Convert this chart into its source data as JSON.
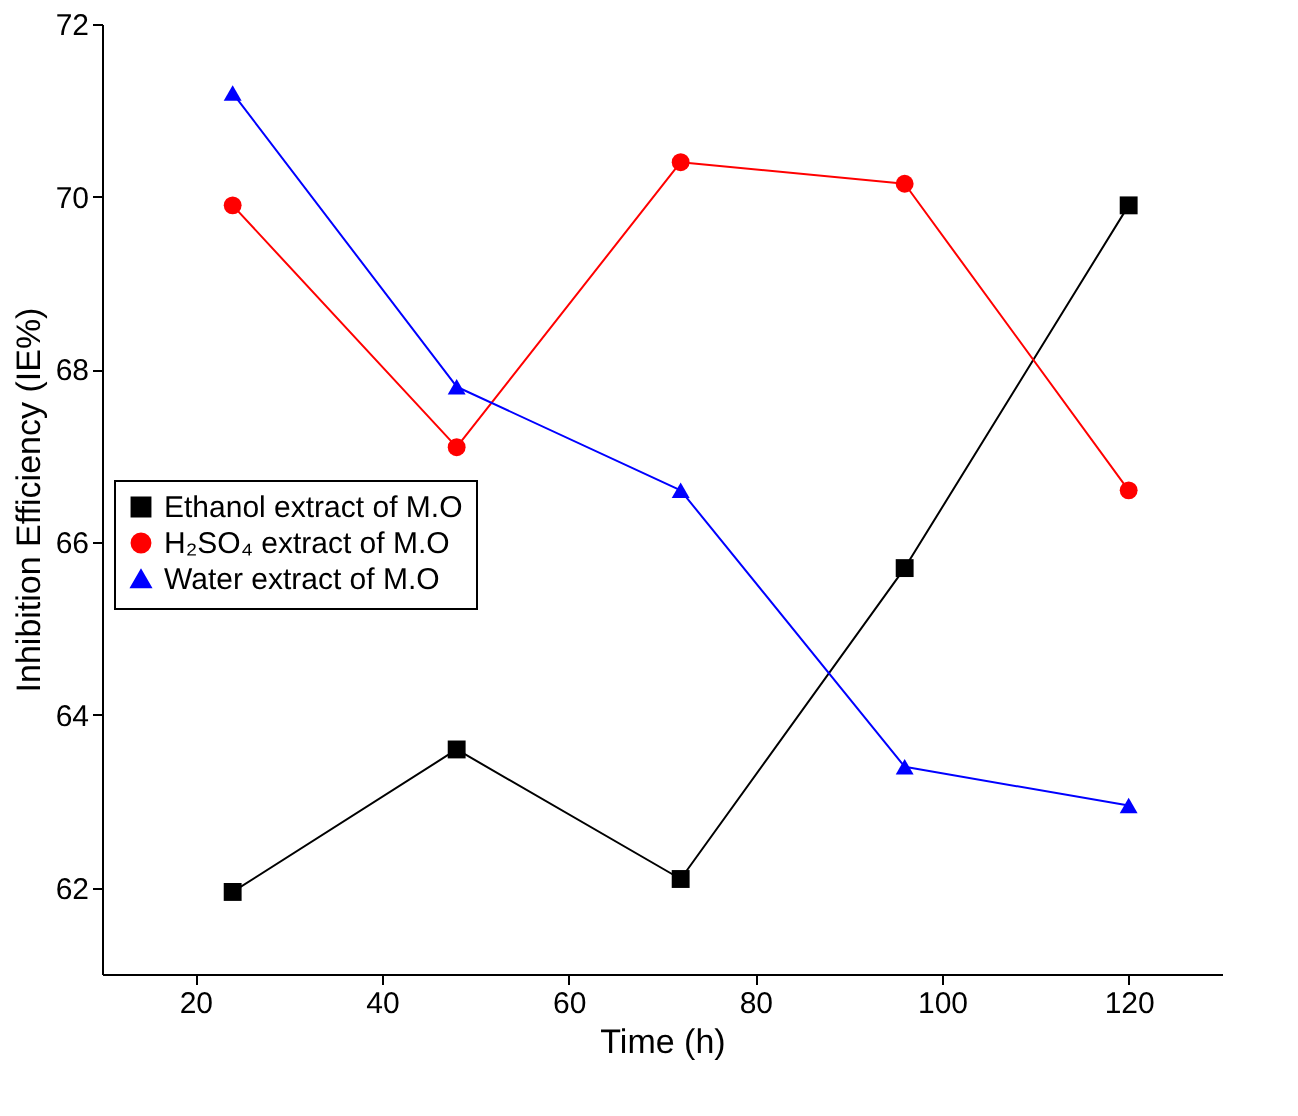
{
  "chart_data": {
    "type": "line",
    "xlabel": "Time (h)",
    "ylabel": "Inhibition Efficiency (IE%)",
    "x": [
      24,
      48,
      72,
      96,
      120
    ],
    "series": [
      {
        "name": "Ethanol extract of M.O",
        "color": "#000000",
        "marker": "square",
        "values": [
          61.95,
          63.6,
          62.1,
          65.7,
          69.9
        ]
      },
      {
        "name": "H₂SO₄ extract of M.O",
        "color": "#ff0000",
        "marker": "circle",
        "values": [
          69.9,
          67.1,
          70.4,
          70.15,
          66.6
        ]
      },
      {
        "name": " Water extract of M.O",
        "color": "#0000ff",
        "marker": "triangle",
        "values": [
          71.2,
          67.8,
          66.6,
          63.4,
          62.95
        ]
      }
    ],
    "xlim": [
      10,
      130
    ],
    "xticks": [
      20,
      40,
      60,
      80,
      100,
      120
    ],
    "ylim": [
      61,
      72
    ],
    "yticks": [
      62,
      64,
      66,
      68,
      70,
      72
    ],
    "grid": false,
    "legend": "left",
    "line_style": "solid"
  }
}
